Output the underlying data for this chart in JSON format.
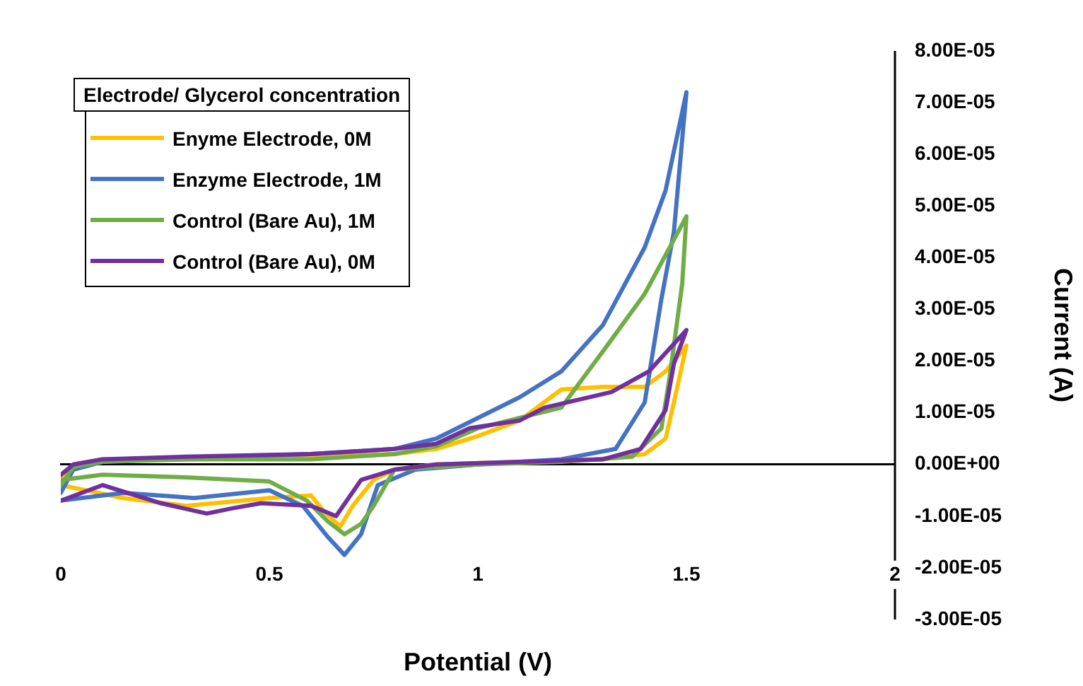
{
  "chart_data": {
    "type": "line",
    "xlabel": "Potential (V)",
    "ylabel": "Current (A)",
    "legend_title": "Electrode/ Glycerol concentration",
    "legend": "top left",
    "xlim": [
      0,
      2
    ],
    "xticks": [
      0,
      0.5,
      1,
      1.5,
      2
    ],
    "ylim": [
      -3e-05,
      8e-05
    ],
    "yticks": [
      {
        "value": -3e-05,
        "label": "-3.00E-05"
      },
      {
        "value": -2e-05,
        "label": "-2.00E-05"
      },
      {
        "value": -1e-05,
        "label": "-1.00E-05"
      },
      {
        "value": 0,
        "label": "0.00E+00"
      },
      {
        "value": 1e-05,
        "label": "1.00E-05"
      },
      {
        "value": 2e-05,
        "label": "2.00E-05"
      },
      {
        "value": 3e-05,
        "label": "3.00E-05"
      },
      {
        "value": 4e-05,
        "label": "4.00E-05"
      },
      {
        "value": 5e-05,
        "label": "5.00E-05"
      },
      {
        "value": 6e-05,
        "label": "6.00E-05"
      },
      {
        "value": 7e-05,
        "label": "7.00E-05"
      },
      {
        "value": 8e-05,
        "label": "8.00E-05"
      }
    ],
    "marker": "none",
    "series": [
      {
        "name": "Enyme Electrode, 0M",
        "color": "#ffc000",
        "x": [
          0,
          0.03,
          0.1,
          0.3,
          0.6,
          0.8,
          0.9,
          1.0,
          1.1,
          1.2,
          1.3,
          1.4,
          1.45,
          1.5,
          1.47,
          1.45,
          1.4,
          1.3,
          1.1,
          0.9,
          0.8,
          0.75,
          0.7,
          0.67,
          0.63,
          0.6,
          0.5,
          0.3,
          0.15,
          0
        ],
        "values": [
          -2.5e-06,
          0,
          1e-06,
          1e-06,
          1.5e-06,
          2e-06,
          3e-06,
          5.5e-06,
          8.5e-06,
          1.45e-05,
          1.5e-05,
          1.5e-05,
          1.8e-05,
          2.3e-05,
          1.2e-05,
          5e-06,
          2e-06,
          1e-06,
          5e-07,
          0,
          -1e-06,
          -3e-06,
          -8e-06,
          -1.2e-05,
          -9e-06,
          -6e-06,
          -6.5e-06,
          -8e-06,
          -6.5e-06,
          -4e-06
        ]
      },
      {
        "name": "Enzyme Electrode, 1M",
        "color": "#4472c4",
        "x": [
          0,
          0.03,
          0.1,
          0.2,
          0.4,
          0.6,
          0.8,
          0.9,
          1.0,
          1.1,
          1.2,
          1.3,
          1.4,
          1.45,
          1.5,
          1.47,
          1.44,
          1.4,
          1.33,
          1.2,
          1.0,
          0.85,
          0.76,
          0.72,
          0.68,
          0.64,
          0.58,
          0.5,
          0.32,
          0.15,
          0
        ],
        "values": [
          -5.5e-06,
          -1e-06,
          5e-07,
          1e-06,
          1.5e-06,
          2e-06,
          3e-06,
          5e-06,
          9e-06,
          1.3e-05,
          1.8e-05,
          2.7e-05,
          4.2e-05,
          5.3e-05,
          7.2e-05,
          4.5e-05,
          3.2e-05,
          1.2e-05,
          3e-06,
          1e-06,
          0,
          -1e-06,
          -4e-06,
          -1.35e-05,
          -1.75e-05,
          -1.4e-05,
          -8e-06,
          -5e-06,
          -6.5e-06,
          -5.5e-06,
          -7e-06
        ]
      },
      {
        "name": "Control (Bare Au), 1M",
        "color": "#70ad47",
        "x": [
          0,
          0.03,
          0.1,
          0.3,
          0.6,
          0.8,
          0.9,
          1.0,
          1.1,
          1.2,
          1.31,
          1.4,
          1.5,
          1.49,
          1.46,
          1.44,
          1.37,
          1.2,
          1.0,
          0.8,
          0.75,
          0.72,
          0.68,
          0.64,
          0.59,
          0.5,
          0.3,
          0.1,
          0
        ],
        "values": [
          -4e-06,
          -5e-07,
          5e-07,
          1e-06,
          1e-06,
          2e-06,
          3.5e-06,
          7e-06,
          9e-06,
          1.1e-05,
          2.3e-05,
          3.3e-05,
          4.8e-05,
          3.5e-05,
          1.7e-05,
          7e-06,
          1.5e-06,
          5e-07,
          0,
          -1e-06,
          -8e-06,
          -1.15e-05,
          -1.35e-05,
          -1.1e-05,
          -7e-06,
          -3.3e-06,
          -2.5e-06,
          -2e-06,
          -3e-06
        ]
      },
      {
        "name": "Control (Bare Au), 0M",
        "color": "#7030a0",
        "x": [
          0,
          0.03,
          0.1,
          0.3,
          0.6,
          0.8,
          0.9,
          0.98,
          1.1,
          1.16,
          1.32,
          1.41,
          1.5,
          1.47,
          1.45,
          1.39,
          1.3,
          1.1,
          0.9,
          0.8,
          0.72,
          0.66,
          0.6,
          0.48,
          0.41,
          0.35,
          0.24,
          0.1,
          0
        ],
        "values": [
          -2e-06,
          0,
          1e-06,
          1.5e-06,
          2e-06,
          3e-06,
          4e-06,
          7e-06,
          8.5e-06,
          1.1e-05,
          1.4e-05,
          1.8e-05,
          2.6e-05,
          1.95e-05,
          1.05e-05,
          3e-06,
          1e-06,
          5e-07,
          0,
          -1e-06,
          -3e-06,
          -1e-05,
          -8e-06,
          -7.5e-06,
          -8.5e-06,
          -9.5e-06,
          -7.5e-06,
          -4e-06,
          -7e-06
        ]
      }
    ]
  }
}
